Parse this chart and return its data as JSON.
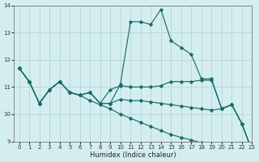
{
  "xlabel": "Humidex (Indice chaleur)",
  "bg_color": "#d4eef0",
  "grid_color": "#b8d8db",
  "line_color": "#1a6b6b",
  "xlim": [
    -0.5,
    23
  ],
  "ylim": [
    9,
    14
  ],
  "yticks": [
    9,
    10,
    11,
    12,
    13,
    14
  ],
  "xticks": [
    0,
    1,
    2,
    3,
    4,
    5,
    6,
    7,
    8,
    9,
    10,
    11,
    12,
    13,
    14,
    15,
    16,
    17,
    18,
    19,
    20,
    21,
    22,
    23
  ],
  "series": [
    [
      11.7,
      11.2,
      10.4,
      10.9,
      11.2,
      10.8,
      10.7,
      10.8,
      10.4,
      10.4,
      11.1,
      13.4,
      13.4,
      13.3,
      13.85,
      12.7,
      12.45,
      12.2,
      11.3,
      11.3,
      10.2,
      10.35,
      9.65,
      8.65
    ],
    [
      11.7,
      11.2,
      10.4,
      10.9,
      11.2,
      10.8,
      10.7,
      10.8,
      10.4,
      10.9,
      11.05,
      11.0,
      11.0,
      11.0,
      11.05,
      11.2,
      11.2,
      11.2,
      11.25,
      11.25,
      10.2,
      10.35,
      9.65,
      8.65
    ],
    [
      11.7,
      11.2,
      10.4,
      10.9,
      11.2,
      10.8,
      10.7,
      10.8,
      10.4,
      10.4,
      10.55,
      10.5,
      10.5,
      10.45,
      10.4,
      10.35,
      10.3,
      10.25,
      10.2,
      10.15,
      10.2,
      10.35,
      9.65,
      8.65
    ],
    [
      11.7,
      11.2,
      10.4,
      10.9,
      11.2,
      10.8,
      10.7,
      10.5,
      10.35,
      10.2,
      10.0,
      9.85,
      9.7,
      9.55,
      9.4,
      9.25,
      9.15,
      9.05,
      8.95,
      8.85,
      8.8,
      8.75,
      8.7,
      8.65
    ]
  ]
}
